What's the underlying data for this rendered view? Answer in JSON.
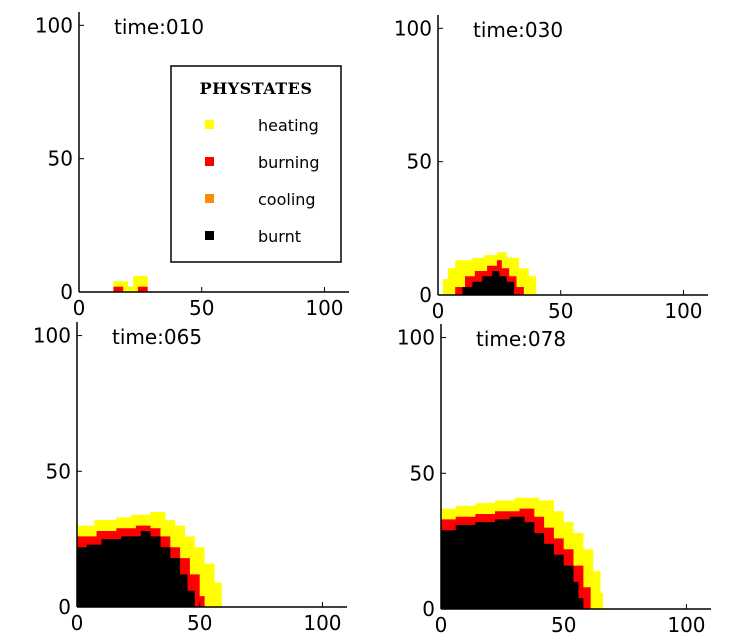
{
  "colors": {
    "heating": "#ffff00",
    "burning": "#ff0000",
    "cooling": "#ff8c00",
    "burnt": "#000000",
    "axis": "#000000"
  },
  "chart_data": {
    "type": "heatmap",
    "title": "",
    "xlabel": "",
    "ylabel": "",
    "xlim": [
      0,
      110
    ],
    "ylim": [
      0,
      105
    ],
    "xticks": [
      0,
      50,
      100
    ],
    "yticks": [
      0,
      50,
      100
    ],
    "grid": false,
    "legend": {
      "title": "PHYSTATES",
      "placement": "top-right of first panel",
      "entries": [
        {
          "label": "heating",
          "color_key": "heating"
        },
        {
          "label": "burning",
          "color_key": "burning"
        },
        {
          "label": "cooling",
          "color_key": "cooling"
        },
        {
          "label": "burnt",
          "color_key": "burnt"
        }
      ]
    },
    "panels": [
      {
        "title": "time:010",
        "regions": {
          "heating": [
            [
              10,
              0
            ],
            [
              14,
              0
            ],
            [
              14,
              4
            ],
            [
              20,
              4
            ],
            [
              20,
              2
            ],
            [
              22,
              2
            ],
            [
              22,
              6
            ],
            [
              28,
              6
            ],
            [
              28,
              0
            ]
          ],
          "burning": [
            [
              14,
              0
            ],
            [
              14,
              2
            ],
            [
              18,
              2
            ],
            [
              18,
              0
            ]
          ],
          "burning_b": [
            [
              24,
              0
            ],
            [
              24,
              2
            ],
            [
              28,
              2
            ],
            [
              28,
              0
            ]
          ],
          "burnt": []
        }
      },
      {
        "title": "time:030",
        "regions": {
          "heating": [
            [
              2,
              0
            ],
            [
              2,
              6
            ],
            [
              4,
              6
            ],
            [
              4,
              10
            ],
            [
              7,
              10
            ],
            [
              7,
              13
            ],
            [
              14,
              13
            ],
            [
              14,
              14
            ],
            [
              19,
              14
            ],
            [
              19,
              15
            ],
            [
              24,
              15
            ],
            [
              24,
              16
            ],
            [
              28,
              16
            ],
            [
              28,
              14
            ],
            [
              33,
              14
            ],
            [
              33,
              10
            ],
            [
              37,
              10
            ],
            [
              37,
              7
            ],
            [
              40,
              7
            ],
            [
              40,
              0
            ]
          ],
          "burning": [
            [
              7,
              0
            ],
            [
              7,
              3
            ],
            [
              11,
              3
            ],
            [
              11,
              7
            ],
            [
              15,
              7
            ],
            [
              15,
              9
            ],
            [
              20,
              9
            ],
            [
              20,
              11
            ],
            [
              24,
              11
            ],
            [
              24,
              13
            ],
            [
              26,
              13
            ],
            [
              26,
              10
            ],
            [
              29,
              10
            ],
            [
              29,
              7
            ],
            [
              32,
              7
            ],
            [
              32,
              3
            ],
            [
              35,
              3
            ],
            [
              35,
              0
            ]
          ],
          "burnt": [
            [
              10,
              0
            ],
            [
              10,
              3
            ],
            [
              14,
              3
            ],
            [
              14,
              5
            ],
            [
              18,
              5
            ],
            [
              18,
              7
            ],
            [
              22,
              7
            ],
            [
              22,
              9
            ],
            [
              25,
              9
            ],
            [
              25,
              7
            ],
            [
              28,
              7
            ],
            [
              28,
              5
            ],
            [
              31,
              5
            ],
            [
              31,
              0
            ]
          ]
        }
      },
      {
        "title": "time:065",
        "regions": {
          "heating": [
            [
              0,
              0
            ],
            [
              0,
              30
            ],
            [
              7,
              30
            ],
            [
              7,
              32
            ],
            [
              16,
              32
            ],
            [
              16,
              33
            ],
            [
              22,
              33
            ],
            [
              22,
              34
            ],
            [
              30,
              34
            ],
            [
              30,
              35
            ],
            [
              36,
              35
            ],
            [
              36,
              32
            ],
            [
              40,
              32
            ],
            [
              40,
              30
            ],
            [
              44,
              30
            ],
            [
              44,
              26
            ],
            [
              48,
              26
            ],
            [
              48,
              22
            ],
            [
              52,
              22
            ],
            [
              52,
              16
            ],
            [
              56,
              16
            ],
            [
              56,
              9
            ],
            [
              59,
              9
            ],
            [
              59,
              0
            ]
          ],
          "burning": [
            [
              0,
              0
            ],
            [
              0,
              26
            ],
            [
              8,
              26
            ],
            [
              8,
              28
            ],
            [
              16,
              28
            ],
            [
              16,
              29
            ],
            [
              24,
              29
            ],
            [
              24,
              30
            ],
            [
              30,
              30
            ],
            [
              30,
              29
            ],
            [
              34,
              29
            ],
            [
              34,
              26
            ],
            [
              38,
              26
            ],
            [
              38,
              22
            ],
            [
              42,
              22
            ],
            [
              42,
              18
            ],
            [
              46,
              18
            ],
            [
              46,
              12
            ],
            [
              50,
              12
            ],
            [
              50,
              4
            ],
            [
              52,
              4
            ],
            [
              52,
              0
            ]
          ],
          "burnt": [
            [
              0,
              0
            ],
            [
              0,
              22
            ],
            [
              4,
              22
            ],
            [
              4,
              23
            ],
            [
              10,
              23
            ],
            [
              10,
              25
            ],
            [
              18,
              25
            ],
            [
              18,
              26
            ],
            [
              26,
              26
            ],
            [
              26,
              28
            ],
            [
              30,
              28
            ],
            [
              30,
              26
            ],
            [
              34,
              26
            ],
            [
              34,
              22
            ],
            [
              38,
              22
            ],
            [
              38,
              18
            ],
            [
              42,
              18
            ],
            [
              42,
              12
            ],
            [
              45,
              12
            ],
            [
              45,
              6
            ],
            [
              48,
              6
            ],
            [
              48,
              0
            ]
          ]
        }
      },
      {
        "title": "time:078",
        "regions": {
          "heating": [
            [
              0,
              0
            ],
            [
              0,
              37
            ],
            [
              6,
              37
            ],
            [
              6,
              38
            ],
            [
              14,
              38
            ],
            [
              14,
              39
            ],
            [
              22,
              39
            ],
            [
              22,
              40
            ],
            [
              30,
              40
            ],
            [
              30,
              41
            ],
            [
              40,
              41
            ],
            [
              40,
              40
            ],
            [
              46,
              40
            ],
            [
              46,
              36
            ],
            [
              50,
              36
            ],
            [
              50,
              32
            ],
            [
              54,
              32
            ],
            [
              54,
              28
            ],
            [
              58,
              28
            ],
            [
              58,
              22
            ],
            [
              62,
              22
            ],
            [
              62,
              14
            ],
            [
              65,
              14
            ],
            [
              65,
              6
            ],
            [
              66,
              6
            ],
            [
              66,
              0
            ]
          ],
          "burning": [
            [
              0,
              0
            ],
            [
              0,
              33
            ],
            [
              6,
              33
            ],
            [
              6,
              34
            ],
            [
              14,
              34
            ],
            [
              14,
              35
            ],
            [
              22,
              35
            ],
            [
              22,
              36
            ],
            [
              32,
              36
            ],
            [
              32,
              37
            ],
            [
              38,
              37
            ],
            [
              38,
              34
            ],
            [
              42,
              34
            ],
            [
              42,
              30
            ],
            [
              46,
              30
            ],
            [
              46,
              26
            ],
            [
              50,
              26
            ],
            [
              50,
              22
            ],
            [
              54,
              22
            ],
            [
              54,
              16
            ],
            [
              58,
              16
            ],
            [
              58,
              8
            ],
            [
              61,
              8
            ],
            [
              61,
              0
            ]
          ],
          "burnt": [
            [
              0,
              0
            ],
            [
              0,
              29
            ],
            [
              6,
              29
            ],
            [
              6,
              31
            ],
            [
              14,
              31
            ],
            [
              14,
              32
            ],
            [
              22,
              32
            ],
            [
              22,
              33
            ],
            [
              28,
              33
            ],
            [
              28,
              34
            ],
            [
              34,
              34
            ],
            [
              34,
              32
            ],
            [
              38,
              32
            ],
            [
              38,
              28
            ],
            [
              42,
              28
            ],
            [
              42,
              24
            ],
            [
              46,
              24
            ],
            [
              46,
              20
            ],
            [
              50,
              20
            ],
            [
              50,
              16
            ],
            [
              54,
              16
            ],
            [
              54,
              10
            ],
            [
              56,
              10
            ],
            [
              56,
              4
            ],
            [
              58,
              4
            ],
            [
              58,
              0
            ]
          ]
        }
      }
    ]
  }
}
